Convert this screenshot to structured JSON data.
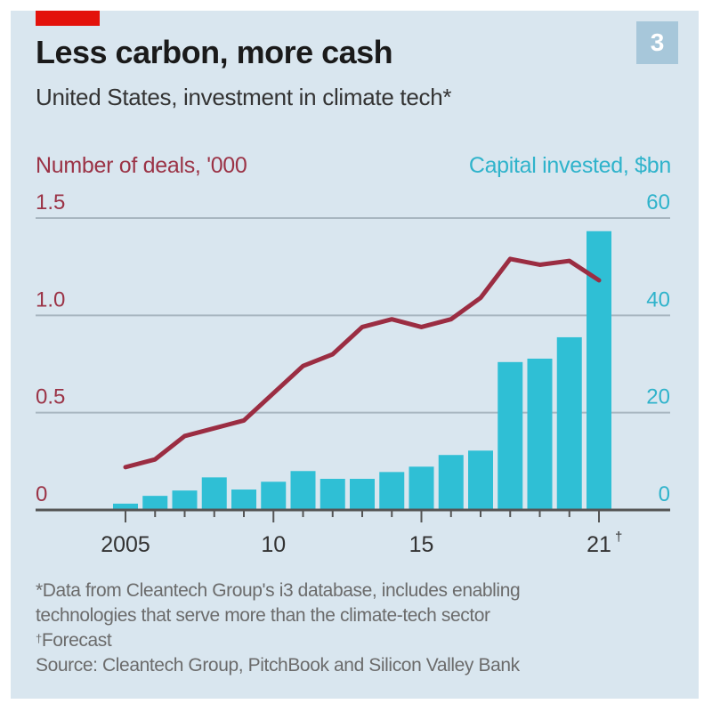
{
  "header": {
    "badge": "3",
    "title": "Less carbon, more cash",
    "subtitle": "United States, investment in climate tech*"
  },
  "chart_data": {
    "type": "bar+line",
    "title": "Less carbon, more cash",
    "subtitle": "United States, investment in climate tech*",
    "categories": [
      2005,
      2006,
      2007,
      2008,
      2009,
      2010,
      2011,
      2012,
      2013,
      2014,
      2015,
      2016,
      2017,
      2018,
      2019,
      2020,
      2021
    ],
    "x_tick_labels": [
      {
        "year": 2005,
        "label": "2005"
      },
      {
        "year": 2010,
        "label": "10"
      },
      {
        "year": 2015,
        "label": "15"
      },
      {
        "year": 2021,
        "label": "21",
        "mark": "†"
      }
    ],
    "left_axis": {
      "label": "Number of deals, '000",
      "ticks": [
        "0",
        "0.5",
        "1.0",
        "1.5"
      ],
      "tick_values": [
        0,
        0.5,
        1.0,
        1.5
      ],
      "range": [
        0,
        1.5
      ]
    },
    "right_axis": {
      "label": "Capital invested, $bn",
      "ticks": [
        "0",
        "20",
        "40",
        "60"
      ],
      "tick_values": [
        0,
        20,
        40,
        60
      ],
      "range": [
        0,
        60
      ]
    },
    "series": [
      {
        "name": "Capital invested, $bn",
        "type": "bar",
        "axis": "right",
        "color": "#2fbfd5",
        "values": [
          1.3,
          2.9,
          4.0,
          6.7,
          4.2,
          5.8,
          8.0,
          6.4,
          6.4,
          7.8,
          8.9,
          11.3,
          12.2,
          30.4,
          31.1,
          35.5,
          57.3
        ]
      },
      {
        "name": "Number of deals, '000",
        "type": "line",
        "axis": "left",
        "color": "#9b2d42",
        "values": [
          0.22,
          0.26,
          0.38,
          0.42,
          0.46,
          0.6,
          0.74,
          0.8,
          0.94,
          0.98,
          0.94,
          0.98,
          1.09,
          1.29,
          1.26,
          1.28,
          1.18
        ]
      }
    ],
    "grid": true
  },
  "notes": {
    "line1": "*Data from Cleantech Group's i3 database, includes enabling",
    "line2": "technologies that serve more than the climate-tech sector",
    "dagger": "†",
    "line3": "Forecast",
    "source": "Source: Cleantech Group, PitchBook and Silicon Valley Bank"
  },
  "colors": {
    "accent_red": "#e3120b",
    "deals": "#9b2d42",
    "capital": "#2fbfd5",
    "background": "#d9e6ef"
  }
}
